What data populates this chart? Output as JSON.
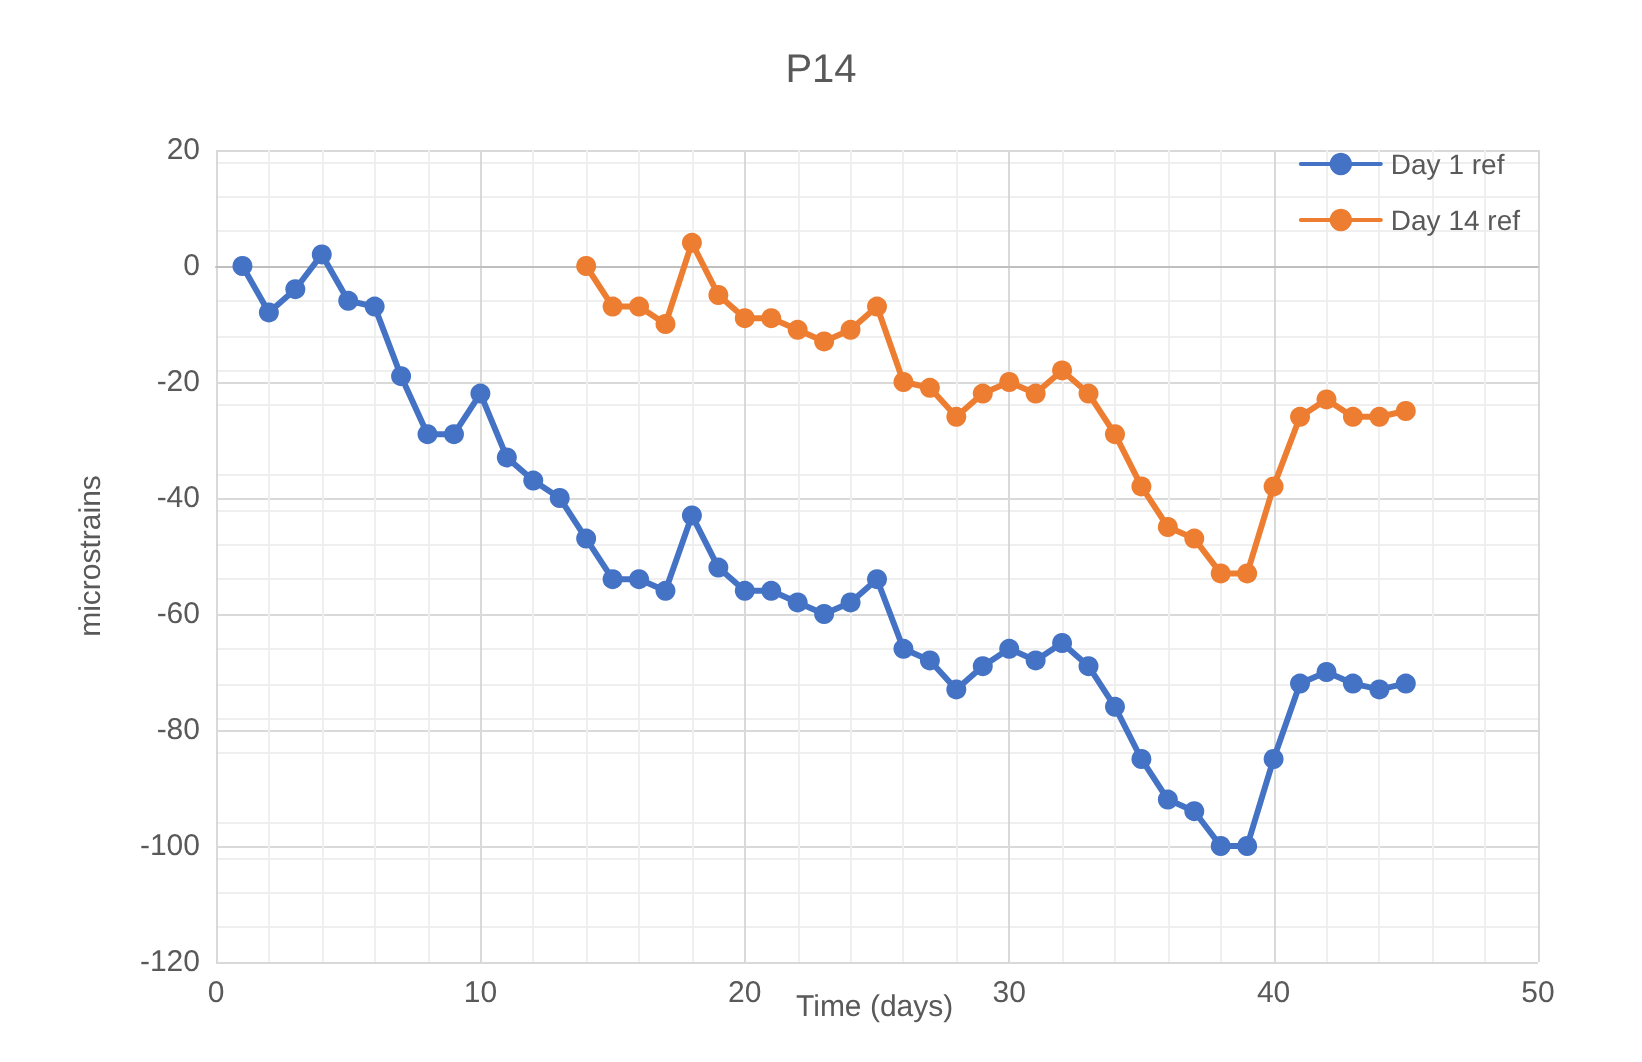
{
  "chart_data": {
    "type": "line",
    "title": "P14",
    "xlabel": "Time (days)",
    "ylabel": "microstrains",
    "xlim": [
      0,
      50
    ],
    "xticks": [
      0,
      10,
      20,
      30,
      40,
      50
    ],
    "ylim": [
      -120,
      20
    ],
    "yticks": [
      -120,
      -100,
      -80,
      -60,
      -40,
      -20,
      0,
      20
    ],
    "grid": true,
    "legend": "top right",
    "marker": "circle",
    "line_style": "solid",
    "series": [
      {
        "name": "Day 1 ref",
        "color": "#4472c4",
        "x": [
          1,
          2,
          3,
          4,
          5,
          6,
          7,
          8,
          9,
          10,
          11,
          12,
          13,
          14,
          15,
          16,
          17,
          18,
          19,
          20,
          21,
          22,
          23,
          24,
          25,
          26,
          27,
          28,
          29,
          30,
          31,
          32,
          33,
          34,
          35,
          36,
          37,
          38,
          39,
          40,
          41,
          42,
          43,
          44,
          45
        ],
        "values": [
          0,
          -8,
          -4,
          2,
          -6,
          -7,
          -19,
          -29,
          -29,
          -22,
          -33,
          -37,
          -40,
          -47,
          -54,
          -54,
          -56,
          -43,
          -52,
          -56,
          -56,
          -58,
          -60,
          -58,
          -54,
          -66,
          -68,
          -73,
          -69,
          -66,
          -68,
          -65,
          -69,
          -76,
          -85,
          -92,
          -94,
          -100,
          -100,
          -85,
          -72,
          -70,
          -72,
          -73,
          -72
        ]
      },
      {
        "name": "Day 14 ref",
        "color": "#ed7d31",
        "x": [
          14,
          15,
          16,
          17,
          18,
          19,
          20,
          21,
          22,
          23,
          24,
          25,
          26,
          27,
          28,
          29,
          30,
          31,
          32,
          33,
          34,
          35,
          36,
          37,
          38,
          39,
          40,
          41,
          42,
          43,
          44,
          45
        ],
        "values": [
          0,
          -7,
          -7,
          -10,
          4,
          -5,
          -9,
          -9,
          -11,
          -13,
          -11,
          -7,
          -20,
          -21,
          -26,
          -22,
          -20,
          -22,
          -18,
          -22,
          -29,
          -38,
          -45,
          -47,
          -53,
          -53,
          -38,
          -26,
          -23,
          -26,
          -26,
          -25
        ]
      }
    ]
  }
}
